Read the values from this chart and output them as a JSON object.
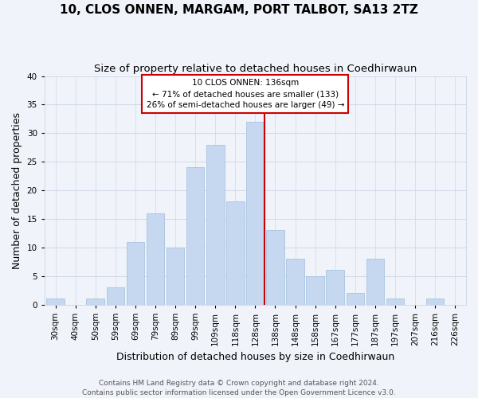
{
  "title": "10, CLOS ONNEN, MARGAM, PORT TALBOT, SA13 2TZ",
  "subtitle": "Size of property relative to detached houses in Coedhirwaun",
  "xlabel": "Distribution of detached houses by size in Coedhirwaun",
  "ylabel": "Number of detached properties",
  "categories": [
    "30sqm",
    "40sqm",
    "50sqm",
    "59sqm",
    "69sqm",
    "79sqm",
    "89sqm",
    "99sqm",
    "109sqm",
    "118sqm",
    "128sqm",
    "138sqm",
    "148sqm",
    "158sqm",
    "167sqm",
    "177sqm",
    "187sqm",
    "197sqm",
    "207sqm",
    "216sqm",
    "226sqm"
  ],
  "values": [
    1,
    0,
    1,
    3,
    11,
    16,
    10,
    24,
    28,
    18,
    32,
    13,
    8,
    5,
    6,
    2,
    8,
    1,
    0,
    1,
    0
  ],
  "bar_color": "#c5d8f0",
  "bar_edge_color": "#a8c4e0",
  "vline_x_index": 10,
  "vline_color": "#cc0000",
  "ylim": [
    0,
    40
  ],
  "yticks": [
    0,
    5,
    10,
    15,
    20,
    25,
    30,
    35,
    40
  ],
  "annotation_title": "10 CLOS ONNEN: 136sqm",
  "annotation_line1": "← 71% of detached houses are smaller (133)",
  "annotation_line2": "26% of semi-detached houses are larger (49) →",
  "annotation_box_color": "#ffffff",
  "annotation_box_edge": "#cc0000",
  "footer_line1": "Contains HM Land Registry data © Crown copyright and database right 2024.",
  "footer_line2": "Contains public sector information licensed under the Open Government Licence v3.0.",
  "title_fontsize": 11,
  "subtitle_fontsize": 9.5,
  "axis_label_fontsize": 9,
  "tick_fontsize": 7.5,
  "footer_fontsize": 6.5,
  "background_color": "#f0f4fa",
  "grid_color": "#d0d8e8"
}
